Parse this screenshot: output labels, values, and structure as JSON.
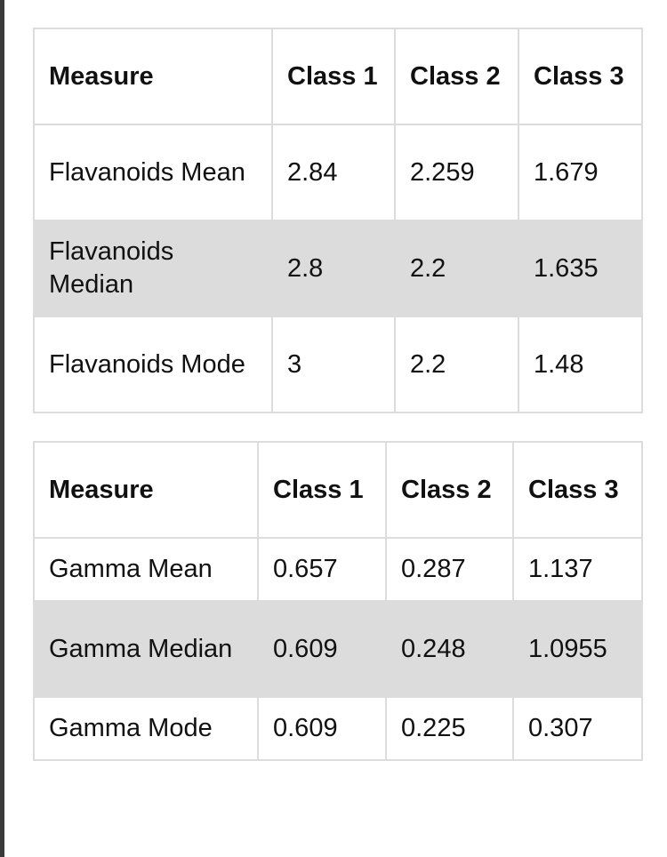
{
  "tables": [
    {
      "headers": [
        "Measure",
        "Class 1",
        "Class 2",
        "Class 3"
      ],
      "rows": [
        [
          "Flavanoids Mean",
          "2.84",
          "2.259",
          "1.679"
        ],
        [
          "Flavanoids Median",
          "2.8",
          "2.2",
          "1.635"
        ],
        [
          "Flavanoids Mode",
          "3",
          "2.2",
          "1.48"
        ]
      ]
    },
    {
      "headers": [
        "Measure",
        "Class 1",
        "Class 2",
        "Class 3"
      ],
      "rows": [
        [
          "Gamma Mean",
          "0.657",
          "0.287",
          "1.137"
        ],
        [
          "Gamma Median",
          "0.609",
          "0.248",
          "1.0955"
        ],
        [
          "Gamma Mode",
          "0.609",
          "0.225",
          "0.307"
        ]
      ]
    }
  ],
  "colors": {
    "border": "#dcdcdc",
    "shaded_row": "#dcdcdc",
    "left_bar": "#3a3a3a"
  }
}
